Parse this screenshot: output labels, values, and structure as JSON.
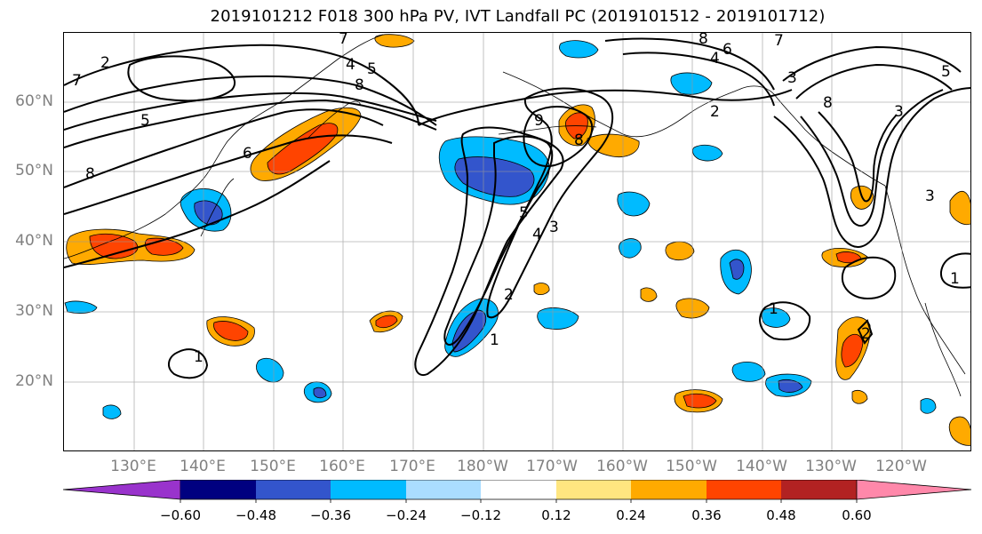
{
  "title": "2019101212 F018 300 hPa PV, IVT Landfall PC (2019101512 - 2019101712)",
  "lat_labels": [
    "60°N",
    "50°N",
    "40°N",
    "30°N",
    "20°N"
  ],
  "lon_labels": [
    "130°E",
    "140°E",
    "150°E",
    "160°E",
    "170°E",
    "180°W",
    "170°W",
    "160°W",
    "150°W",
    "140°W",
    "130°W",
    "120°W"
  ],
  "colorbar": {
    "tick_labels": [
      "−0.60",
      "−0.48",
      "−0.36",
      "−0.24",
      "−0.12",
      "0.12",
      "0.24",
      "0.36",
      "0.48",
      "0.60"
    ],
    "colors": [
      "#9933cc",
      "#000080",
      "#3355cc",
      "#00bbff",
      "#aaddff",
      "#ffffff",
      "#ffe680",
      "#ffaa00",
      "#ff4400",
      "#b22222",
      "#ff88aa"
    ]
  },
  "contour_labels": [
    "7",
    "2",
    "5",
    "8",
    "6",
    "4",
    "3",
    "1",
    "9"
  ]
}
